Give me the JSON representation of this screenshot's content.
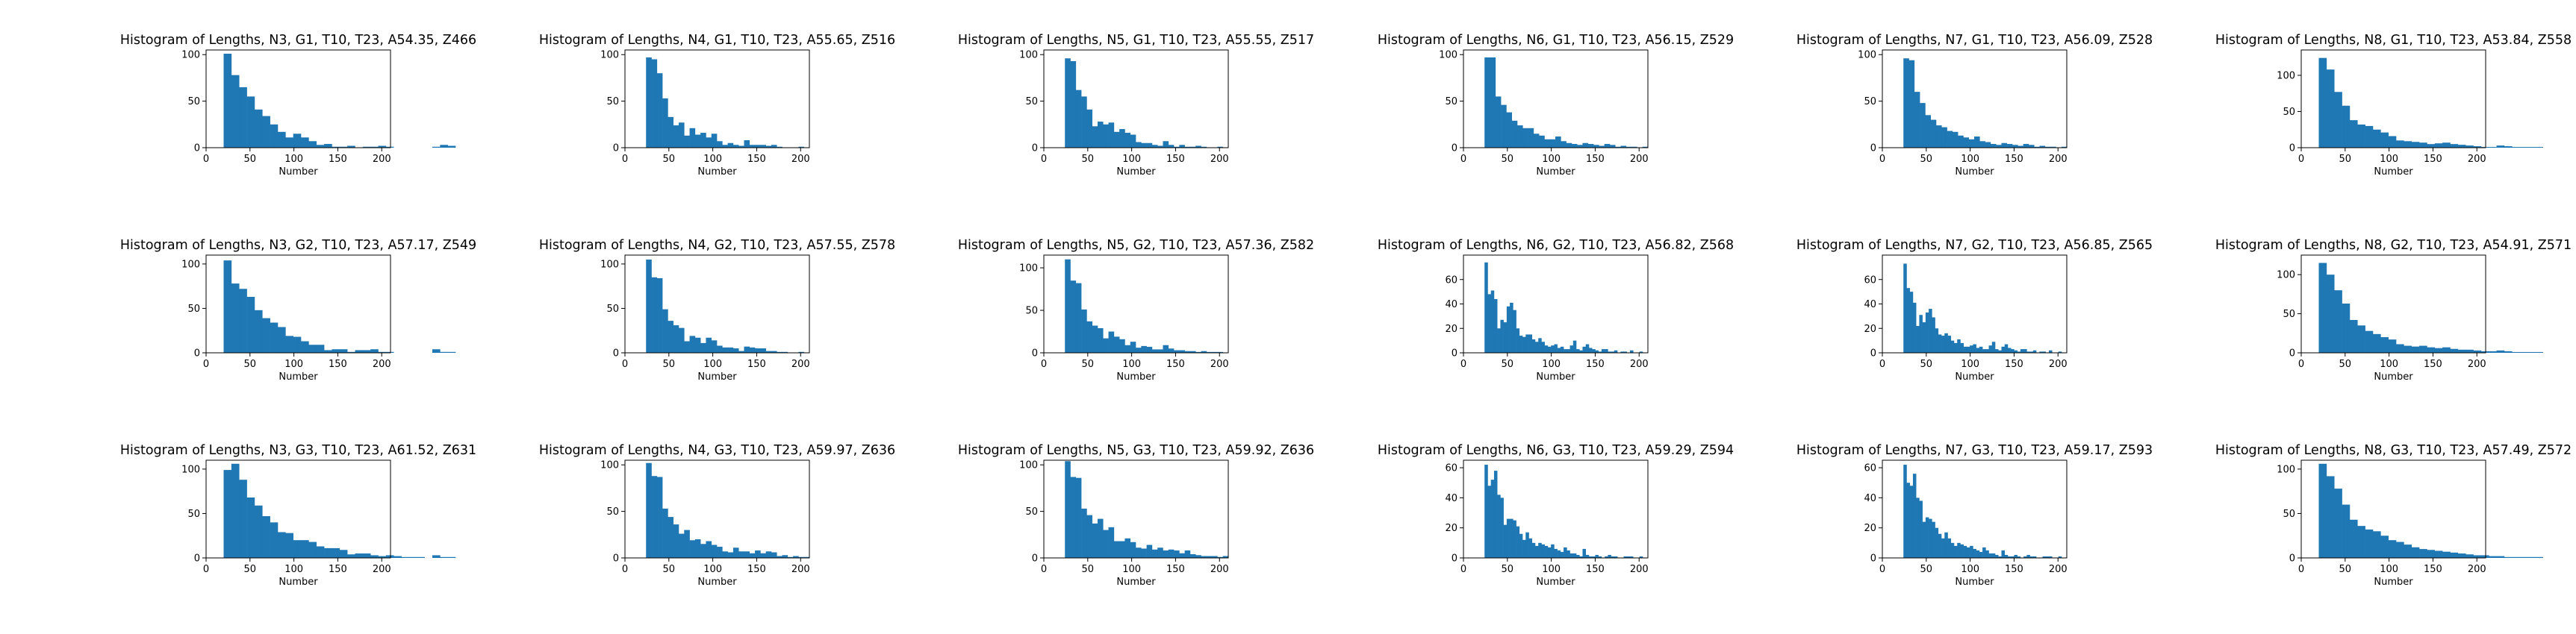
{
  "figure": {
    "background": "#ffffff",
    "bar_color": "#1f77b4"
  },
  "chart_data": [
    {
      "type": "bar",
      "title": "Histogram of Lengths, N3, G1, T10, T23, A54.35, Z466",
      "xlabel": "Number",
      "ylabel": "",
      "xlim": [
        0,
        210
      ],
      "ylim": [
        0,
        105
      ],
      "xticks": [
        "0",
        "50",
        "100",
        "150",
        "200"
      ],
      "yticks": [
        "0",
        "50",
        "100"
      ],
      "bin_start": 20,
      "bin_width": 8.8,
      "values": [
        101,
        78,
        65,
        55,
        41,
        34,
        25,
        17,
        11,
        15,
        11,
        7,
        3,
        4,
        1,
        1,
        2,
        0,
        1,
        1,
        2,
        1,
        0,
        0,
        0,
        0,
        0,
        1,
        3,
        2
      ]
    },
    {
      "type": "bar",
      "title": "Histogram of Lengths, N4, G1, T10, T23, A55.65, Z516",
      "xlabel": "Number",
      "ylabel": "",
      "xlim": [
        0,
        210
      ],
      "ylim": [
        0,
        105
      ],
      "xticks": [
        "0",
        "50",
        "100",
        "150",
        "200"
      ],
      "yticks": [
        "0",
        "50",
        "100"
      ],
      "bin_start": 24,
      "bin_width": 6.2,
      "values": [
        97,
        95,
        80,
        53,
        33,
        24,
        27,
        13,
        21,
        14,
        16,
        11,
        15,
        7,
        3,
        5,
        3,
        2,
        8,
        3,
        3,
        3,
        2,
        3,
        1,
        0,
        0,
        0,
        1,
        0
      ]
    },
    {
      "type": "bar",
      "title": "Histogram of Lengths, N5, G1, T10, T23, A55.55, Z517",
      "xlabel": "Number",
      "ylabel": "",
      "xlim": [
        0,
        210
      ],
      "ylim": [
        0,
        105
      ],
      "xticks": [
        "0",
        "50",
        "100",
        "150",
        "200"
      ],
      "yticks": [
        "0",
        "50",
        "100"
      ],
      "bin_start": 24,
      "bin_width": 6.2,
      "values": [
        96,
        93,
        62,
        55,
        41,
        23,
        28,
        25,
        27,
        17,
        20,
        16,
        14,
        6,
        5,
        5,
        3,
        2,
        7,
        3,
        1,
        3,
        1,
        1,
        2,
        1,
        0,
        0,
        1,
        0
      ]
    },
    {
      "type": "bar",
      "title": "Histogram of Lengths, N6, G1, T10, T23, A56.15, Z529",
      "xlabel": "Number",
      "ylabel": "",
      "xlim": [
        0,
        210
      ],
      "ylim": [
        0,
        105
      ],
      "xticks": [
        "0",
        "50",
        "100",
        "150",
        "200"
      ],
      "yticks": [
        "0",
        "50",
        "100"
      ],
      "bin_start": 24,
      "bin_width": 6.2,
      "values": [
        97,
        97,
        55,
        46,
        38,
        29,
        24,
        21,
        21,
        15,
        13,
        9,
        9,
        12,
        7,
        5,
        4,
        3,
        5,
        4,
        3,
        2,
        4,
        3,
        1,
        2,
        1,
        1,
        0,
        1
      ]
    },
    {
      "type": "bar",
      "title": "Histogram of Lengths, N7, G1, T10, T23, A56.09, Z528",
      "xlabel": "Number",
      "ylabel": "",
      "xlim": [
        0,
        210
      ],
      "ylim": [
        0,
        105
      ],
      "xticks": [
        "0",
        "50",
        "100",
        "150",
        "200"
      ],
      "yticks": [
        "0",
        "50",
        "100"
      ],
      "bin_start": 24,
      "bin_width": 6.2,
      "values": [
        96,
        94,
        60,
        48,
        35,
        30,
        24,
        22,
        18,
        17,
        13,
        11,
        9,
        12,
        7,
        6,
        4,
        3,
        5,
        4,
        3,
        2,
        4,
        3,
        1,
        2,
        1,
        1,
        0,
        1
      ]
    },
    {
      "type": "bar",
      "title": "Histogram of Lengths, N8, G1, T10, T23, A53.84, Z558",
      "xlabel": "Number",
      "ylabel": "",
      "xlim": [
        0,
        210
      ],
      "ylim": [
        0,
        135
      ],
      "xticks": [
        "0",
        "50",
        "100",
        "150",
        "200"
      ],
      "yticks": [
        "0",
        "50",
        "100"
      ],
      "bin_start": 20,
      "bin_width": 8.8,
      "values": [
        124,
        108,
        77,
        58,
        38,
        32,
        30,
        25,
        21,
        16,
        10,
        9,
        8,
        7,
        5,
        6,
        7,
        5,
        4,
        3,
        2,
        1,
        1,
        3,
        2,
        1,
        1,
        1,
        1,
        0
      ]
    },
    {
      "type": "bar",
      "title": "Histogram of Lengths, N3, G2, T10, T23, A57.17, Z549",
      "xlabel": "Number",
      "ylabel": "",
      "xlim": [
        0,
        210
      ],
      "ylim": [
        0,
        110
      ],
      "xticks": [
        "0",
        "50",
        "100",
        "150",
        "200"
      ],
      "yticks": [
        "0",
        "50",
        "100"
      ],
      "bin_start": 20,
      "bin_width": 8.8,
      "values": [
        104,
        78,
        72,
        63,
        48,
        39,
        34,
        29,
        19,
        18,
        13,
        9,
        9,
        3,
        4,
        4,
        1,
        3,
        3,
        4,
        1,
        1,
        0,
        0,
        0,
        0,
        0,
        4,
        1,
        1
      ]
    },
    {
      "type": "bar",
      "title": "Histogram of Lengths, N4, G2, T10, T23, A57.55, Z578",
      "xlabel": "Number",
      "ylabel": "",
      "xlim": [
        0,
        210
      ],
      "ylim": [
        0,
        110
      ],
      "xticks": [
        "0",
        "50",
        "100",
        "150",
        "200"
      ],
      "yticks": [
        "0",
        "50",
        "100"
      ],
      "bin_start": 24,
      "bin_width": 6.2,
      "values": [
        105,
        85,
        84,
        49,
        36,
        31,
        28,
        13,
        19,
        17,
        11,
        17,
        14,
        8,
        6,
        6,
        5,
        2,
        7,
        6,
        5,
        5,
        2,
        2,
        1,
        1,
        0,
        0,
        1,
        0
      ]
    },
    {
      "type": "bar",
      "title": "Histogram of Lengths, N5, G2, T10, T23, A57.36, Z582",
      "xlabel": "Number",
      "ylabel": "",
      "xlim": [
        0,
        210
      ],
      "ylim": [
        0,
        115
      ],
      "xticks": [
        "0",
        "50",
        "100",
        "150",
        "200"
      ],
      "yticks": [
        "0",
        "50",
        "100"
      ],
      "bin_start": 24,
      "bin_width": 6.2,
      "values": [
        110,
        85,
        82,
        51,
        37,
        32,
        29,
        17,
        25,
        19,
        16,
        9,
        13,
        6,
        8,
        7,
        4,
        4,
        9,
        5,
        3,
        3,
        2,
        2,
        1,
        2,
        1,
        1,
        1,
        0
      ]
    },
    {
      "type": "bar",
      "title": "Histogram of Lengths, N6, G2, T10, T23, A56.82, Z568",
      "xlabel": "Number",
      "ylabel": "",
      "xlim": [
        0,
        210
      ],
      "ylim": [
        0,
        80
      ],
      "xticks": [
        "0",
        "50",
        "100",
        "150",
        "200"
      ],
      "yticks": [
        "0",
        "20",
        "40",
        "60"
      ],
      "bin_start": 24,
      "bin_width": 3.6,
      "values": [
        74,
        48,
        51,
        44,
        20,
        27,
        25,
        38,
        41,
        35,
        20,
        14,
        13,
        15,
        15,
        11,
        9,
        12,
        9,
        6,
        5,
        6,
        7,
        4,
        5,
        3,
        3,
        6,
        10,
        3,
        2,
        5,
        7,
        4,
        3,
        2,
        1,
        3,
        3,
        1,
        1,
        2,
        0,
        1,
        1,
        0,
        2,
        0,
        0,
        1
      ]
    },
    {
      "type": "bar",
      "title": "Histogram of Lengths, N7, G2, T10, T23, A56.85, Z565",
      "xlabel": "Number",
      "ylabel": "",
      "xlim": [
        0,
        210
      ],
      "ylim": [
        0,
        80
      ],
      "xticks": [
        "0",
        "50",
        "100",
        "150",
        "200"
      ],
      "yticks": [
        "0",
        "20",
        "40",
        "60"
      ],
      "bin_start": 24,
      "bin_width": 3.6,
      "values": [
        73,
        53,
        50,
        41,
        22,
        31,
        25,
        33,
        36,
        29,
        20,
        15,
        14,
        16,
        14,
        10,
        8,
        11,
        8,
        5,
        5,
        6,
        7,
        4,
        5,
        3,
        3,
        6,
        9,
        3,
        2,
        5,
        7,
        4,
        3,
        2,
        1,
        3,
        3,
        1,
        1,
        2,
        0,
        1,
        1,
        0,
        2,
        0,
        0,
        1
      ]
    },
    {
      "type": "bar",
      "title": "Histogram of Lengths, N8, G2, T10, T23, A54.91, Z571",
      "xlabel": "Number",
      "ylabel": "",
      "xlim": [
        0,
        210
      ],
      "ylim": [
        0,
        125
      ],
      "xticks": [
        "0",
        "50",
        "100",
        "150",
        "200"
      ],
      "yticks": [
        "0",
        "50",
        "100"
      ],
      "bin_start": 20,
      "bin_width": 8.8,
      "values": [
        115,
        100,
        80,
        63,
        42,
        35,
        28,
        24,
        20,
        17,
        11,
        9,
        8,
        9,
        7,
        6,
        7,
        5,
        4,
        4,
        3,
        2,
        2,
        3,
        2,
        1,
        1,
        1,
        1,
        0
      ]
    },
    {
      "type": "bar",
      "title": "Histogram of Lengths, N3, G3, T10, T23, A61.52, Z631",
      "xlabel": "Number",
      "ylabel": "",
      "xlim": [
        0,
        210
      ],
      "ylim": [
        0,
        110
      ],
      "xticks": [
        "0",
        "50",
        "100",
        "150",
        "200"
      ],
      "yticks": [
        "0",
        "50",
        "100"
      ],
      "bin_start": 20,
      "bin_width": 8.8,
      "values": [
        99,
        106,
        88,
        68,
        59,
        47,
        40,
        29,
        28,
        20,
        20,
        18,
        13,
        11,
        11,
        9,
        4,
        5,
        5,
        3,
        2,
        3,
        2,
        1,
        1,
        1,
        0,
        3,
        1,
        1
      ]
    },
    {
      "type": "bar",
      "title": "Histogram of Lengths, N4, G3, T10, T23, A59.97, Z636",
      "xlabel": "Number",
      "ylabel": "",
      "xlim": [
        0,
        210
      ],
      "ylim": [
        0,
        105
      ],
      "xticks": [
        "0",
        "50",
        "100",
        "150",
        "200"
      ],
      "yticks": [
        "0",
        "50",
        "100"
      ],
      "bin_start": 24,
      "bin_width": 6.2,
      "values": [
        102,
        88,
        87,
        53,
        44,
        36,
        26,
        30,
        19,
        20,
        15,
        18,
        14,
        12,
        7,
        6,
        11,
        7,
        7,
        5,
        8,
        5,
        7,
        6,
        2,
        3,
        1,
        2,
        1,
        1
      ]
    },
    {
      "type": "bar",
      "title": "Histogram of Lengths, N5, G3, T10, T23, A59.92, Z636",
      "xlabel": "Number",
      "ylabel": "",
      "xlim": [
        0,
        210
      ],
      "ylim": [
        0,
        105
      ],
      "xticks": [
        "0",
        "50",
        "100",
        "150",
        "200"
      ],
      "yticks": [
        "0",
        "50",
        "100"
      ],
      "bin_start": 24,
      "bin_width": 6.2,
      "values": [
        104,
        87,
        86,
        53,
        46,
        37,
        42,
        30,
        33,
        18,
        18,
        21,
        17,
        11,
        10,
        14,
        9,
        11,
        8,
        9,
        8,
        5,
        8,
        4,
        3,
        2,
        2,
        2,
        1,
        2
      ]
    },
    {
      "type": "bar",
      "title": "Histogram of Lengths, N6, G3, T10, T23, A59.29, Z594",
      "xlabel": "Number",
      "ylabel": "",
      "xlim": [
        0,
        210
      ],
      "ylim": [
        0,
        65
      ],
      "xticks": [
        "0",
        "50",
        "100",
        "150",
        "200"
      ],
      "yticks": [
        "0",
        "20",
        "40",
        "60"
      ],
      "bin_start": 24,
      "bin_width": 3.6,
      "values": [
        62,
        48,
        52,
        58,
        42,
        40,
        22,
        26,
        26,
        25,
        21,
        16,
        12,
        17,
        13,
        10,
        8,
        10,
        9,
        8,
        7,
        9,
        6,
        5,
        4,
        7,
        5,
        3,
        3,
        2,
        1,
        6,
        2,
        1,
        1,
        2,
        1,
        0,
        1,
        2,
        1,
        1,
        0,
        0,
        1,
        1,
        1,
        0,
        0,
        1
      ]
    },
    {
      "type": "bar",
      "title": "Histogram of Lengths, N7, G3, T10, T23, A59.17, Z593",
      "xlabel": "Number",
      "ylabel": "",
      "xlim": [
        0,
        210
      ],
      "ylim": [
        0,
        65
      ],
      "xticks": [
        "0",
        "50",
        "100",
        "150",
        "200"
      ],
      "yticks": [
        "0",
        "20",
        "40",
        "60"
      ],
      "bin_start": 24,
      "bin_width": 3.6,
      "values": [
        62,
        50,
        48,
        56,
        40,
        38,
        24,
        27,
        26,
        24,
        20,
        16,
        13,
        17,
        13,
        10,
        8,
        10,
        9,
        8,
        7,
        8,
        6,
        5,
        4,
        7,
        5,
        3,
        3,
        2,
        1,
        5,
        2,
        1,
        1,
        2,
        1,
        0,
        1,
        2,
        1,
        1,
        0,
        0,
        1,
        1,
        1,
        0,
        0,
        1
      ]
    },
    {
      "type": "bar",
      "title": "Histogram of Lengths, N8, G3, T10, T23, A57.49, Z572",
      "xlabel": "Number",
      "ylabel": "",
      "xlim": [
        0,
        210
      ],
      "ylim": [
        0,
        110
      ],
      "xticks": [
        "0",
        "50",
        "100",
        "150",
        "200"
      ],
      "yticks": [
        "0",
        "50",
        "100"
      ],
      "bin_start": 20,
      "bin_width": 8.8,
      "values": [
        106,
        92,
        78,
        60,
        43,
        36,
        32,
        30,
        25,
        20,
        18,
        15,
        12,
        10,
        9,
        8,
        7,
        6,
        5,
        4,
        3,
        3,
        2,
        2,
        1,
        1,
        1,
        1,
        1,
        0
      ]
    }
  ]
}
